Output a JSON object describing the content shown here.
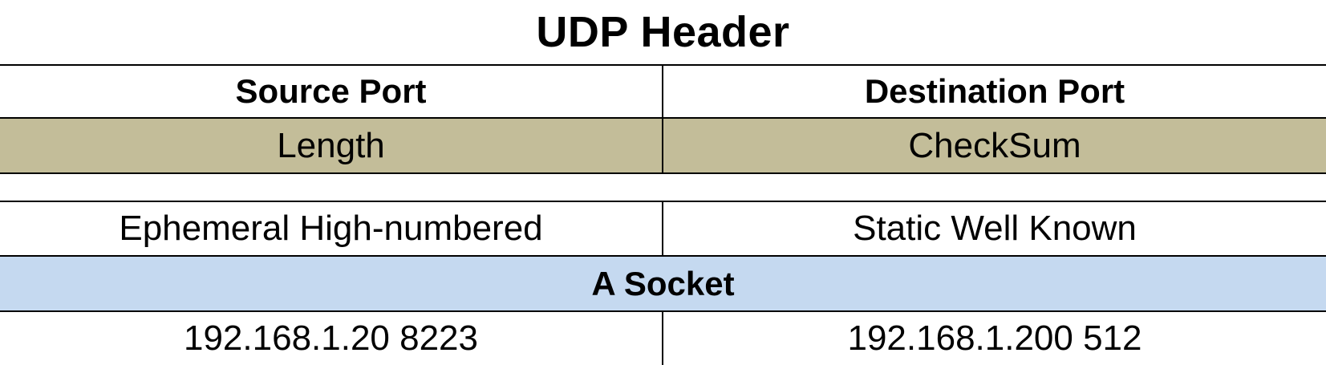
{
  "title": "UDP Header",
  "colors": {
    "tan_row": "#c3bd99",
    "blue_row": "#c5d9f0",
    "border": "#000000"
  },
  "header_rows": [
    {
      "left": "Source Port",
      "right": "Destination Port"
    },
    {
      "left": "Length",
      "right": "CheckSum"
    }
  ],
  "port_types": {
    "left": "Ephemeral High-numbered",
    "right": "Static Well Known"
  },
  "socket": {
    "label": "A Socket",
    "left": "192.168.1.20 8223",
    "right": "192.168.1.200 512"
  }
}
